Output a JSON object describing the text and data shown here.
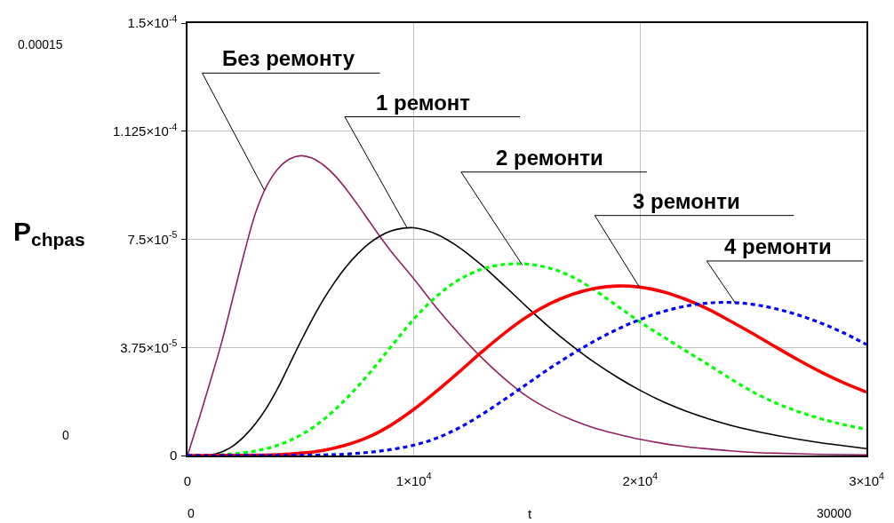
{
  "chart_data": {
    "type": "line",
    "xlabel": "t",
    "ylabel": "P$_{chpas}$",
    "xlim": [
      0,
      30000
    ],
    "ylim": [
      0,
      0.00015
    ],
    "xticks": [
      0,
      {
        "value": 10000,
        "label": "1×10$^{4}$"
      },
      {
        "value": 20000,
        "label": "2×10$^{4}$"
      },
      {
        "value": 30000,
        "label": "3×10$^{4}$"
      }
    ],
    "yticks": [
      0,
      {
        "value": 3.75e-05,
        "label": "3.75×10$^{-5}$"
      },
      {
        "value": 7.5e-05,
        "label": "7.5×10$^{-5}$"
      },
      {
        "value": 0.0001125,
        "label": "1.125×10$^{-4}$"
      },
      {
        "value": 0.00015,
        "label": "1.5×10$^{-4}$"
      }
    ],
    "grid": true,
    "series": [
      {
        "color": "#902060",
        "x": [
          0,
          500,
          1000,
          1500,
          2000,
          2500,
          3000,
          3500,
          4000,
          4500,
          5000,
          5500,
          6000,
          6500,
          7000,
          7500,
          8000,
          8500,
          9000,
          10000,
          11000,
          12000,
          13000,
          14000,
          15000,
          16000,
          17000,
          18000,
          19000,
          20000,
          21000,
          22000,
          23000,
          24000,
          25000,
          26000,
          28000,
          30000
        ],
        "values": [
          0,
          1.25e-05,
          2.55e-05,
          3.9e-05,
          5.45e-05,
          7e-05,
          8.4e-05,
          9.35e-05,
          9.95e-05,
          0.0001028,
          0.000104,
          0.0001032,
          0.0001008,
          9.72e-05,
          9.25e-05,
          8.72e-05,
          8.16e-05,
          7.6e-05,
          7.08e-05,
          6.13e-05,
          5.13e-05,
          4.22e-05,
          3.39e-05,
          2.67e-05,
          2.05e-05,
          1.59e-05,
          1.23e-05,
          9.5e-06,
          7.4e-06,
          5.6e-06,
          4.2e-06,
          3.1e-06,
          2.3e-06,
          1.6e-06,
          1.1e-06,
          8e-07,
          4e-07,
          2e-07
        ]
      },
      {
        "color": "#000000",
        "x": [
          0,
          1000,
          1500,
          2000,
          2500,
          3000,
          3500,
          4000,
          4500,
          5000,
          5500,
          6000,
          6500,
          7000,
          7500,
          8000,
          8500,
          9000,
          9500,
          10000,
          11000,
          12000,
          13000,
          14000,
          15000,
          16000,
          17000,
          18000,
          19000,
          20000,
          21000,
          22000,
          23000,
          24000,
          25000,
          26000,
          27000,
          28000,
          29000,
          30000
        ],
        "values": [
          0,
          2e-07,
          1.2e-06,
          3.3e-06,
          6.6e-06,
          1.1e-05,
          1.66e-05,
          2.35e-05,
          3.15e-05,
          3.95e-05,
          4.71e-05,
          5.4e-05,
          6.01e-05,
          6.54e-05,
          6.98e-05,
          7.34e-05,
          7.61e-05,
          7.79e-05,
          7.88e-05,
          7.9e-05,
          7.68e-05,
          7.22e-05,
          6.6e-05,
          5.89e-05,
          5.15e-05,
          4.44e-05,
          3.8e-05,
          3.22e-05,
          2.71e-05,
          2.26e-05,
          1.87e-05,
          1.55e-05,
          1.28e-05,
          1.05e-05,
          8.6e-06,
          7e-06,
          5.6e-06,
          4.4e-06,
          3.4e-06,
          2.4e-06
        ]
      },
      {
        "color": "#00ff00",
        "line_style": "dashed",
        "x": [
          0,
          1000,
          2000,
          3000,
          4000,
          5000,
          6000,
          7000,
          8000,
          9000,
          10000,
          11000,
          12000,
          13000,
          14000,
          15000,
          16000,
          17000,
          18000,
          19000,
          20000,
          21000,
          22000,
          23000,
          24000,
          25000,
          26000,
          27000,
          28000,
          29000,
          30000
        ],
        "values": [
          0,
          1e-07,
          6e-07,
          1.6e-06,
          3.6e-06,
          7.1e-06,
          1.24e-05,
          1.96e-05,
          2.82e-05,
          3.78e-05,
          4.73e-05,
          5.52e-05,
          6.1e-05,
          6.46e-05,
          6.63e-05,
          6.64e-05,
          6.5e-05,
          6.2e-05,
          5.73e-05,
          5.18e-05,
          4.63e-05,
          4.13e-05,
          3.64e-05,
          3.16e-05,
          2.66e-05,
          2.2e-05,
          1.82e-05,
          1.52e-05,
          1.27e-05,
          1.07e-05,
          9.1e-06
        ]
      },
      {
        "color": "#ff0000",
        "x": [
          0,
          4000,
          5000,
          6000,
          7000,
          8000,
          9000,
          10000,
          11000,
          12000,
          13000,
          14000,
          15000,
          16000,
          17000,
          18000,
          19000,
          20000,
          21000,
          22000,
          23000,
          24000,
          25000,
          26000,
          27000,
          28000,
          29000,
          30000
        ],
        "values": [
          0,
          3e-07,
          8e-07,
          1.8e-06,
          3.6e-06,
          6.4e-06,
          1.06e-05,
          1.6e-05,
          2.23e-05,
          2.9e-05,
          3.59e-05,
          4.24e-05,
          4.81e-05,
          5.26e-05,
          5.59e-05,
          5.8e-05,
          5.88e-05,
          5.84e-05,
          5.68e-05,
          5.42e-05,
          5.08e-05,
          4.66e-05,
          4.22e-05,
          3.76e-05,
          3.31e-05,
          2.89e-05,
          2.52e-05,
          2.2e-05
        ]
      },
      {
        "color": "#0000ff",
        "line_style": "dashed",
        "x": [
          0,
          6000,
          7000,
          8000,
          9000,
          10000,
          11000,
          12000,
          13000,
          14000,
          15000,
          16000,
          17000,
          18000,
          19000,
          20000,
          21000,
          22000,
          23000,
          24000,
          25000,
          26000,
          27000,
          28000,
          29000,
          30000
        ],
        "values": [
          0,
          2e-07,
          5e-07,
          1.1e-06,
          2.1e-06,
          3.6e-06,
          6e-06,
          9.6e-06,
          1.42e-05,
          1.94e-05,
          2.48e-05,
          3.02e-05,
          3.52e-05,
          3.98e-05,
          4.38e-05,
          4.72e-05,
          4.99e-05,
          5.18e-05,
          5.29e-05,
          5.31e-05,
          5.24e-05,
          5.09e-05,
          4.87e-05,
          4.59e-05,
          4.25e-05,
          3.85e-05
        ]
      }
    ],
    "annotations": [
      {
        "text": "Без ремонту",
        "x": 3400,
        "y": 9.2e-05
      },
      {
        "text": "1 ремонт",
        "x": 9700,
        "y": 7.9e-05
      },
      {
        "text": "2 ремонти",
        "x": 14800,
        "y": 6.6e-05
      },
      {
        "text": "3 ремонти",
        "x": 20000,
        "y": 5.8e-05
      },
      {
        "text": "4 ремонти",
        "x": 24200,
        "y": 5.3e-05
      },
      "0.00015",
      "0",
      "0",
      "30000"
    ]
  }
}
